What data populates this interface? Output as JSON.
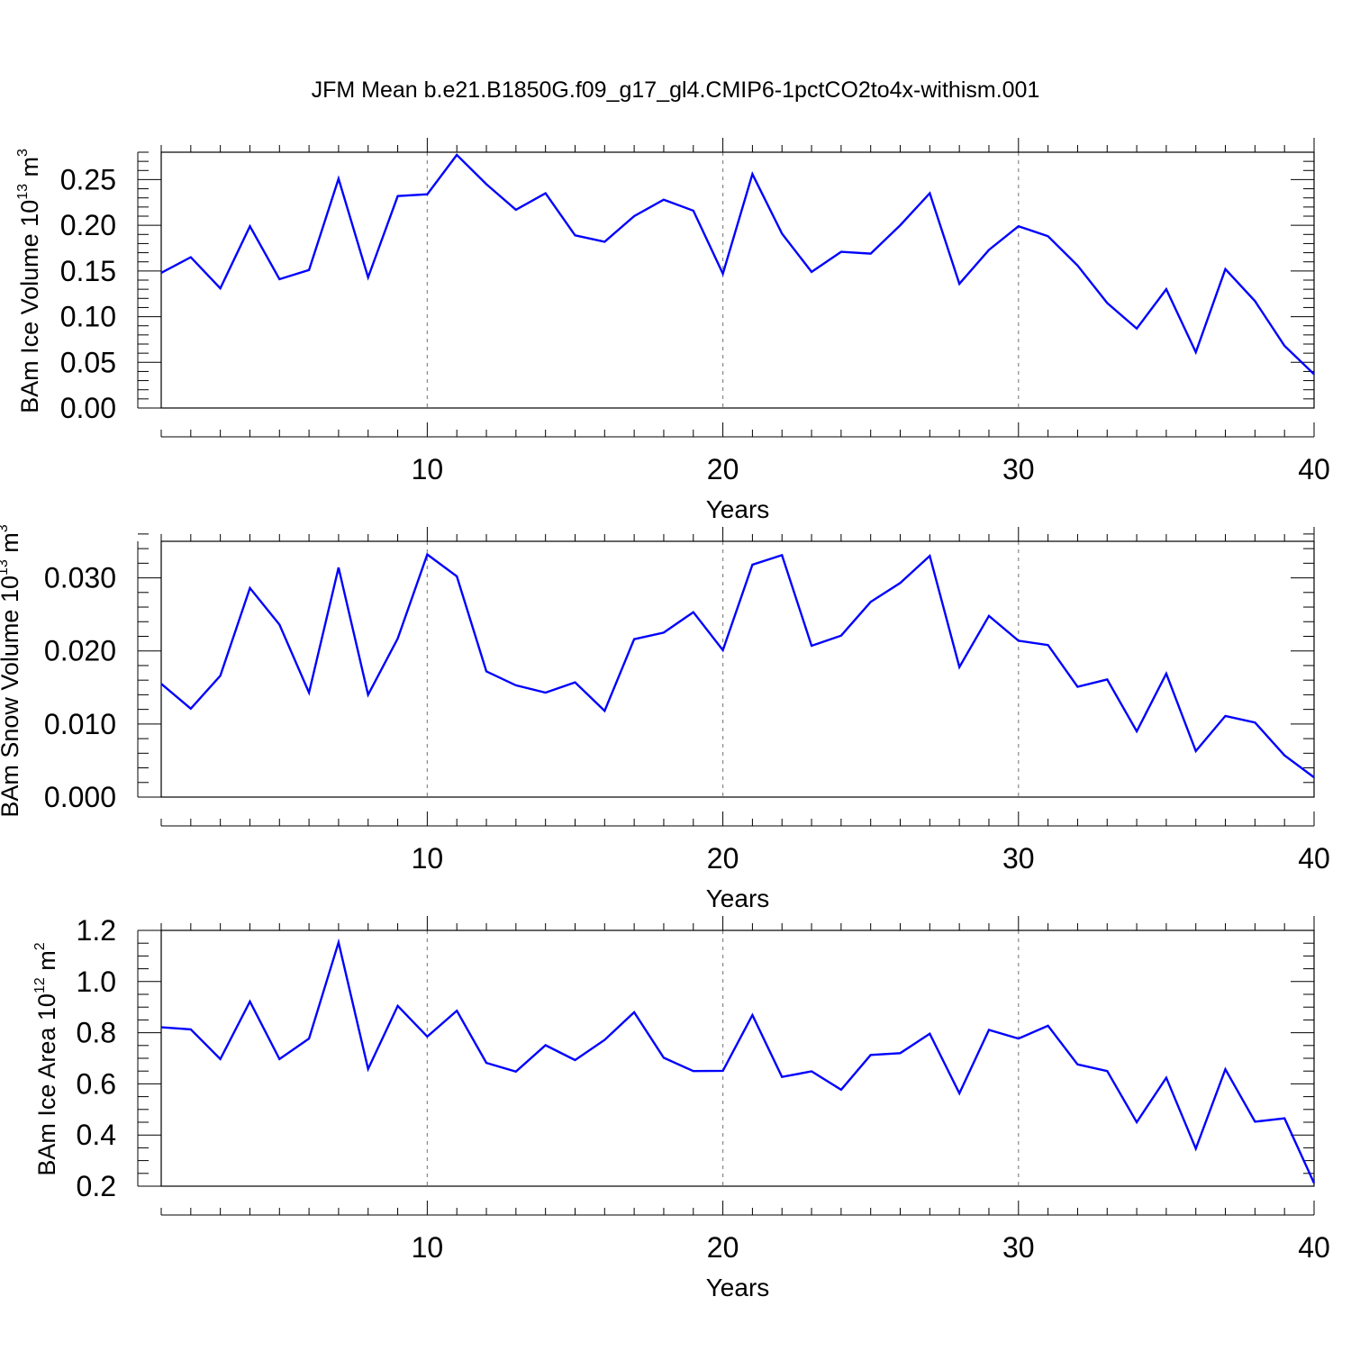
{
  "title": "JFM Mean b.e21.B1850G.f09_g17_gl4.CMIP6-1pctCO2to4x-withism.001",
  "colors": {
    "line": "#0000ff",
    "grid": "#888888"
  },
  "chart_data": [
    {
      "type": "line",
      "ylabel": {
        "text": "BAm Ice Volume 10",
        "exponent": "13",
        "unit_text": " m",
        "unit_exponent": "3"
      },
      "xlabel": "Years",
      "xlim": [
        1,
        40
      ],
      "ylim": [
        0,
        0.28
      ],
      "grid": "vertical dashed at 10, 20, 30",
      "x_ticks": [
        10,
        20,
        30,
        40
      ],
      "x_tick_labels": [
        "10",
        "20",
        "30",
        "40"
      ],
      "y_ticks": [
        0,
        0.05,
        0.1,
        0.15,
        0.2,
        0.25
      ],
      "y_tick_labels": [
        "0.00",
        "0.05",
        "0.10",
        "0.15",
        "0.20",
        "0.25"
      ],
      "y_minor_step": 0.01,
      "series": [
        {
          "name": "BAm Ice Volume",
          "x": [
            1,
            2,
            3,
            4,
            5,
            6,
            7,
            8,
            9,
            10,
            11,
            12,
            13,
            14,
            15,
            16,
            17,
            18,
            19,
            20,
            21,
            22,
            23,
            24,
            25,
            26,
            27,
            28,
            29,
            30,
            31,
            32,
            33,
            34,
            35,
            36,
            37,
            38,
            39,
            40
          ],
          "values": [
            0.148,
            0.165,
            0.131,
            0.199,
            0.141,
            0.151,
            0.251,
            0.143,
            0.232,
            0.234,
            0.277,
            0.245,
            0.217,
            0.235,
            0.189,
            0.182,
            0.21,
            0.228,
            0.216,
            0.147,
            0.256,
            0.191,
            0.149,
            0.171,
            0.169,
            0.2,
            0.235,
            0.136,
            0.173,
            0.199,
            0.188,
            0.156,
            0.115,
            0.087,
            0.13,
            0.061,
            0.152,
            0.117,
            0.068,
            0.037
          ]
        }
      ]
    },
    {
      "type": "line",
      "ylabel": {
        "text": "BAm Snow Volume 10",
        "exponent": "13",
        "unit_text": " m",
        "unit_exponent": "3"
      },
      "xlabel": "Years",
      "xlim": [
        1,
        40
      ],
      "ylim": [
        0,
        0.035
      ],
      "grid": "vertical dashed at 10, 20, 30",
      "x_ticks": [
        10,
        20,
        30,
        40
      ],
      "x_tick_labels": [
        "10",
        "20",
        "30",
        "40"
      ],
      "y_ticks": [
        0,
        0.01,
        0.02,
        0.03
      ],
      "y_tick_labels": [
        "0.000",
        "0.010",
        "0.020",
        "0.030"
      ],
      "y_minor_step": 0.002,
      "series": [
        {
          "name": "BAm Snow Volume",
          "x": [
            1,
            2,
            3,
            4,
            5,
            6,
            7,
            8,
            9,
            10,
            11,
            12,
            13,
            14,
            15,
            16,
            17,
            18,
            19,
            20,
            21,
            22,
            23,
            24,
            25,
            26,
            27,
            28,
            29,
            30,
            31,
            32,
            33,
            34,
            35,
            36,
            37,
            38,
            39,
            40
          ],
          "values": [
            0.0155,
            0.0121,
            0.0166,
            0.0286,
            0.0236,
            0.0143,
            0.0314,
            0.014,
            0.0217,
            0.0332,
            0.0302,
            0.0172,
            0.0153,
            0.0143,
            0.0157,
            0.0118,
            0.0216,
            0.0225,
            0.0253,
            0.0201,
            0.0318,
            0.0331,
            0.0207,
            0.0221,
            0.0267,
            0.0293,
            0.033,
            0.0178,
            0.0248,
            0.0214,
            0.0208,
            0.0151,
            0.0161,
            0.009,
            0.0169,
            0.0063,
            0.0111,
            0.0102,
            0.0057,
            0.0027
          ]
        }
      ]
    },
    {
      "type": "line",
      "ylabel": {
        "text": "BAm Ice Area 10",
        "exponent": "12",
        "unit_text": " m",
        "unit_exponent": "2"
      },
      "xlabel": "Years",
      "xlim": [
        1,
        40
      ],
      "ylim": [
        0.2,
        1.2
      ],
      "grid": "vertical dashed at 10, 20, 30",
      "x_ticks": [
        10,
        20,
        30,
        40
      ],
      "x_tick_labels": [
        "10",
        "20",
        "30",
        "40"
      ],
      "y_ticks": [
        0.2,
        0.4,
        0.6,
        0.8,
        1.0,
        1.2
      ],
      "y_tick_labels": [
        "0.2",
        "0.4",
        "0.6",
        "0.8",
        "1.0",
        "1.2"
      ],
      "y_minor_step": 0.05,
      "series": [
        {
          "name": "BAm Ice Area",
          "x": [
            1,
            2,
            3,
            4,
            5,
            6,
            7,
            8,
            9,
            10,
            11,
            12,
            13,
            14,
            15,
            16,
            17,
            18,
            19,
            20,
            21,
            22,
            23,
            24,
            25,
            26,
            27,
            28,
            29,
            30,
            31,
            32,
            33,
            34,
            35,
            36,
            37,
            38,
            39,
            40
          ],
          "values": [
            0.821,
            0.813,
            0.697,
            0.922,
            0.697,
            0.777,
            1.153,
            0.658,
            0.905,
            0.785,
            0.886,
            0.682,
            0.648,
            0.751,
            0.693,
            0.772,
            0.88,
            0.702,
            0.65,
            0.651,
            0.869,
            0.627,
            0.649,
            0.577,
            0.713,
            0.72,
            0.796,
            0.563,
            0.811,
            0.777,
            0.827,
            0.676,
            0.65,
            0.45,
            0.624,
            0.347,
            0.657,
            0.452,
            0.465,
            0.212
          ]
        }
      ]
    }
  ]
}
